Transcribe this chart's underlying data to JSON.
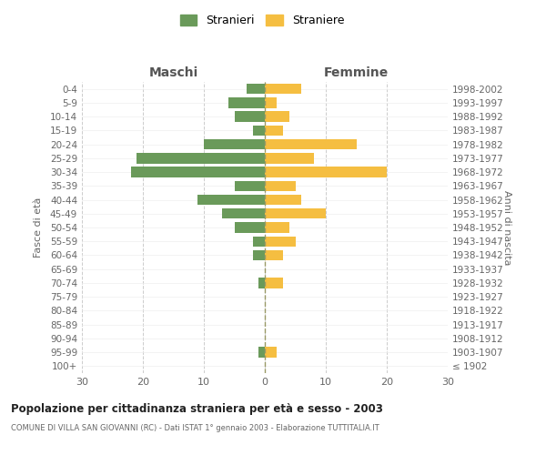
{
  "age_groups": [
    "100+",
    "95-99",
    "90-94",
    "85-89",
    "80-84",
    "75-79",
    "70-74",
    "65-69",
    "60-64",
    "55-59",
    "50-54",
    "45-49",
    "40-44",
    "35-39",
    "30-34",
    "25-29",
    "20-24",
    "15-19",
    "10-14",
    "5-9",
    "0-4"
  ],
  "birth_years": [
    "≤ 1902",
    "1903-1907",
    "1908-1912",
    "1913-1917",
    "1918-1922",
    "1923-1927",
    "1928-1932",
    "1933-1937",
    "1938-1942",
    "1943-1947",
    "1948-1952",
    "1953-1957",
    "1958-1962",
    "1963-1967",
    "1968-1972",
    "1973-1977",
    "1978-1982",
    "1983-1987",
    "1988-1992",
    "1993-1997",
    "1998-2002"
  ],
  "maschi": [
    0,
    1,
    0,
    0,
    0,
    0,
    1,
    0,
    2,
    2,
    5,
    7,
    11,
    5,
    22,
    21,
    10,
    2,
    5,
    6,
    3
  ],
  "femmine": [
    0,
    2,
    0,
    0,
    0,
    0,
    3,
    0,
    3,
    5,
    4,
    10,
    6,
    5,
    20,
    8,
    15,
    3,
    4,
    2,
    6
  ],
  "maschi_color": "#6a9a5a",
  "femmine_color": "#f5be41",
  "background_color": "#ffffff",
  "grid_color": "#cccccc",
  "title": "Popolazione per cittadinanza straniera per età e sesso - 2003",
  "subtitle": "COMUNE DI VILLA SAN GIOVANNI (RC) - Dati ISTAT 1° gennaio 2003 - Elaborazione TUTTITALIA.IT",
  "xlabel_left": "Maschi",
  "xlabel_right": "Femmine",
  "ylabel_left": "Fasce di età",
  "ylabel_right": "Anni di nascita",
  "legend_stranieri": "Stranieri",
  "legend_straniere": "Straniere",
  "xlim": 30
}
